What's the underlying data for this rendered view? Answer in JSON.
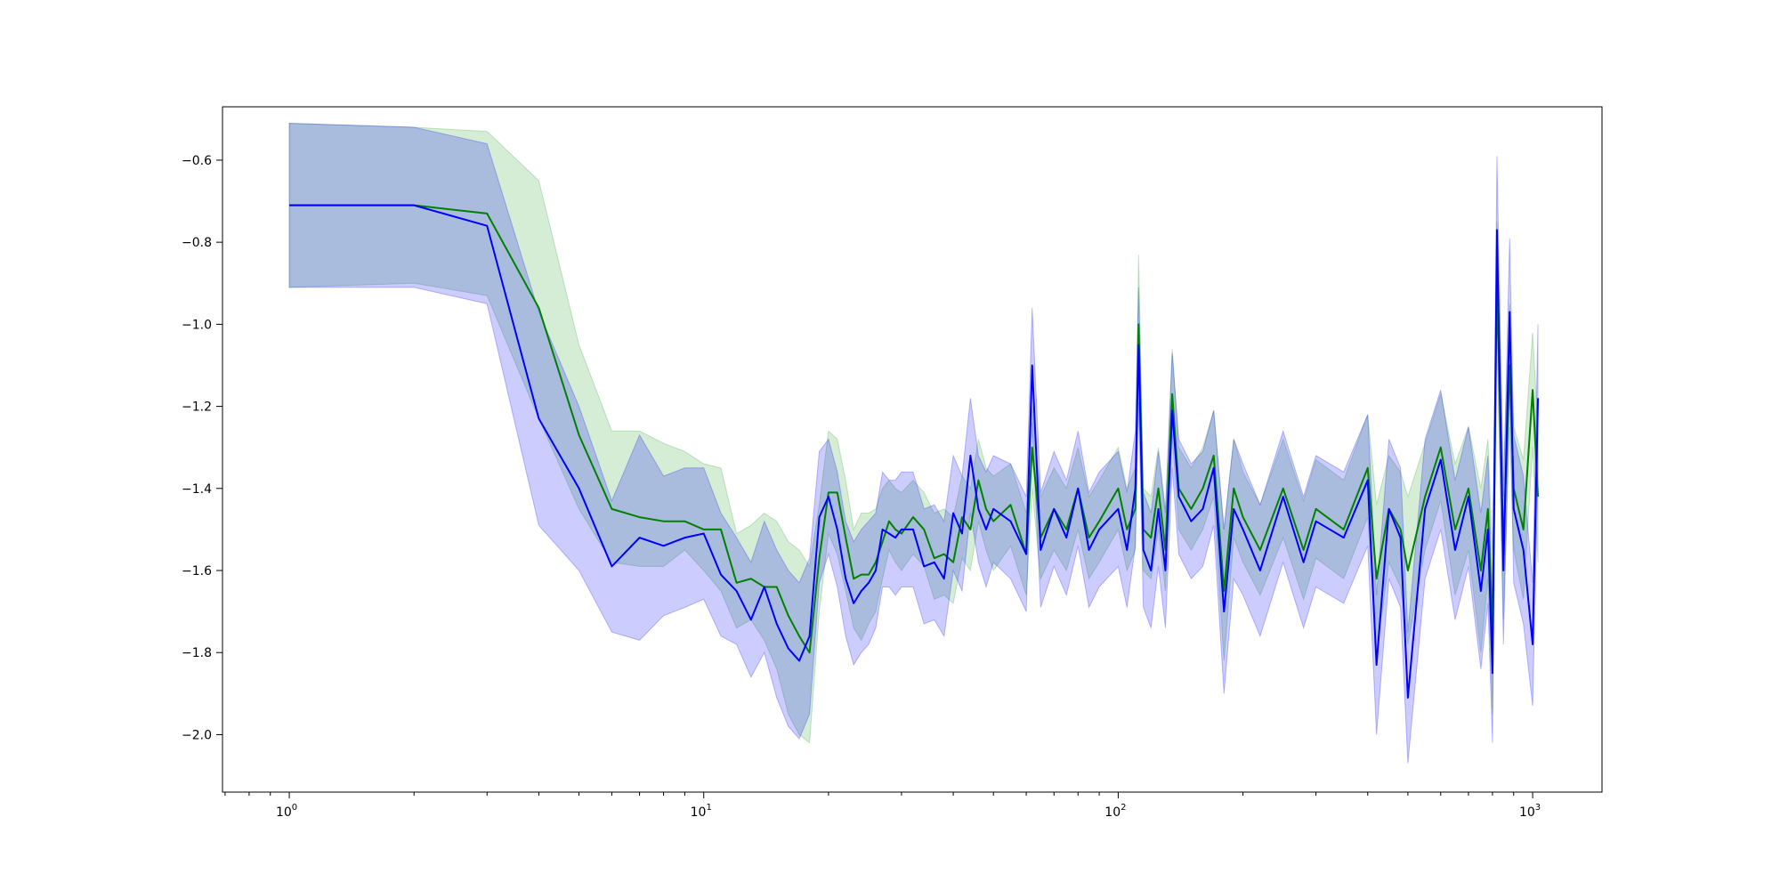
{
  "chart_data": {
    "type": "line",
    "title": "",
    "xlabel": "",
    "ylabel": "",
    "xscale": "log",
    "xlim": [
      0.69,
      1470
    ],
    "ylim": [
      -2.14,
      -0.47
    ],
    "grid": false,
    "legend": "none",
    "x_ticks": [
      {
        "value": 1,
        "base": "10",
        "exp": "0"
      },
      {
        "value": 10,
        "base": "10",
        "exp": "1"
      },
      {
        "value": 100,
        "base": "10",
        "exp": "2"
      },
      {
        "value": 1000,
        "base": "10",
        "exp": "3"
      }
    ],
    "y_ticks": [
      {
        "value": -0.6,
        "label": "−0.6"
      },
      {
        "value": -0.8,
        "label": "−0.8"
      },
      {
        "value": -1.0,
        "label": "−1.0"
      },
      {
        "value": -1.2,
        "label": "−1.2"
      },
      {
        "value": -1.4,
        "label": "−1.4"
      },
      {
        "value": -1.6,
        "label": "−1.6"
      },
      {
        "value": -1.8,
        "label": "−1.8"
      },
      {
        "value": -2.0,
        "label": "−2.0"
      }
    ],
    "series": [
      {
        "color": "#008000",
        "band_color": "#2ca02c",
        "x": [
          1,
          2,
          3,
          4,
          5,
          6,
          7,
          8,
          9,
          10,
          11,
          12,
          13,
          14,
          15,
          16,
          17,
          18,
          19,
          20,
          21,
          22,
          23,
          24,
          25,
          26,
          27,
          28,
          29,
          30,
          32,
          34,
          36,
          38,
          40,
          42,
          44,
          46,
          48,
          50,
          55,
          60,
          62,
          65,
          70,
          75,
          80,
          85,
          90,
          100,
          105,
          110,
          112,
          115,
          120,
          125,
          130,
          135,
          140,
          150,
          160,
          170,
          180,
          190,
          200,
          220,
          250,
          280,
          300,
          350,
          400,
          420,
          450,
          480,
          500,
          550,
          600,
          650,
          700,
          750,
          780,
          800,
          820,
          850,
          880,
          900,
          950,
          1000,
          1030
        ],
        "y": [
          -0.71,
          -0.71,
          -0.73,
          -0.96,
          -1.27,
          -1.45,
          -1.47,
          -1.48,
          -1.48,
          -1.5,
          -1.5,
          -1.63,
          -1.62,
          -1.64,
          -1.64,
          -1.71,
          -1.76,
          -1.8,
          -1.57,
          -1.41,
          -1.41,
          -1.52,
          -1.62,
          -1.61,
          -1.61,
          -1.58,
          -1.53,
          -1.48,
          -1.5,
          -1.51,
          -1.47,
          -1.5,
          -1.57,
          -1.56,
          -1.58,
          -1.47,
          -1.5,
          -1.38,
          -1.45,
          -1.48,
          -1.44,
          -1.56,
          -1.3,
          -1.52,
          -1.45,
          -1.5,
          -1.4,
          -1.52,
          -1.48,
          -1.4,
          -1.5,
          -1.45,
          -1.0,
          -1.5,
          -1.52,
          -1.4,
          -1.55,
          -1.17,
          -1.4,
          -1.45,
          -1.4,
          -1.32,
          -1.65,
          -1.4,
          -1.47,
          -1.55,
          -1.4,
          -1.55,
          -1.45,
          -1.5,
          -1.35,
          -1.62,
          -1.45,
          -1.5,
          -1.6,
          -1.42,
          -1.3,
          -1.5,
          -1.4,
          -1.6,
          -1.45,
          -1.75,
          -0.9,
          -1.55,
          -1.1,
          -1.4,
          -1.5,
          -1.16,
          -1.42
        ],
        "lower": [
          -0.91,
          -0.9,
          -0.93,
          -1.23,
          -1.45,
          -1.58,
          -1.59,
          -1.59,
          -1.55,
          -1.6,
          -1.65,
          -1.74,
          -1.72,
          -1.77,
          -1.84,
          -1.95,
          -2.0,
          -2.02,
          -1.7,
          -1.51,
          -1.56,
          -1.65,
          -1.74,
          -1.77,
          -1.73,
          -1.7,
          -1.62,
          -1.55,
          -1.58,
          -1.6,
          -1.56,
          -1.59,
          -1.67,
          -1.66,
          -1.68,
          -1.57,
          -1.6,
          -1.48,
          -1.55,
          -1.6,
          -1.54,
          -1.66,
          -1.4,
          -1.62,
          -1.55,
          -1.6,
          -1.5,
          -1.62,
          -1.58,
          -1.5,
          -1.6,
          -1.55,
          -1.1,
          -1.6,
          -1.62,
          -1.5,
          -1.65,
          -1.27,
          -1.5,
          -1.55,
          -1.5,
          -1.42,
          -1.82,
          -1.52,
          -1.58,
          -1.66,
          -1.52,
          -1.67,
          -1.57,
          -1.62,
          -1.47,
          -1.8,
          -1.58,
          -1.64,
          -1.78,
          -1.55,
          -1.43,
          -1.66,
          -1.55,
          -1.8,
          -1.62,
          -1.95,
          -1.05,
          -1.72,
          -1.25,
          -1.55,
          -1.67,
          -1.3,
          -1.58
        ],
        "upper": [
          -0.51,
          -0.52,
          -0.53,
          -0.65,
          -1.05,
          -1.26,
          -1.26,
          -1.29,
          -1.31,
          -1.34,
          -1.35,
          -1.51,
          -1.49,
          -1.46,
          -1.48,
          -1.53,
          -1.55,
          -1.59,
          -1.44,
          -1.26,
          -1.28,
          -1.38,
          -1.5,
          -1.46,
          -1.46,
          -1.45,
          -1.4,
          -1.38,
          -1.4,
          -1.41,
          -1.38,
          -1.41,
          -1.46,
          -1.45,
          -1.47,
          -1.37,
          -1.4,
          -1.28,
          -1.35,
          -1.37,
          -1.34,
          -1.46,
          -1.2,
          -1.42,
          -1.35,
          -1.4,
          -1.3,
          -1.42,
          -1.38,
          -1.3,
          -1.4,
          -1.35,
          -0.83,
          -1.4,
          -1.42,
          -1.3,
          -1.45,
          -1.06,
          -1.3,
          -1.35,
          -1.3,
          -1.21,
          -1.5,
          -1.28,
          -1.36,
          -1.44,
          -1.28,
          -1.43,
          -1.33,
          -1.38,
          -1.22,
          -1.44,
          -1.32,
          -1.36,
          -1.42,
          -1.29,
          -1.17,
          -1.34,
          -1.25,
          -1.4,
          -1.28,
          -1.55,
          -0.75,
          -1.38,
          -0.95,
          -1.25,
          -1.33,
          -1.02,
          -1.26
        ]
      },
      {
        "color": "#0000ff",
        "band_color": "#0000ff",
        "x": [
          1,
          2,
          3,
          4,
          5,
          6,
          7,
          8,
          9,
          10,
          11,
          12,
          13,
          14,
          15,
          16,
          17,
          18,
          19,
          20,
          21,
          22,
          23,
          24,
          25,
          26,
          27,
          28,
          29,
          30,
          32,
          34,
          36,
          38,
          40,
          42,
          44,
          46,
          48,
          50,
          55,
          60,
          62,
          65,
          70,
          75,
          80,
          85,
          90,
          100,
          105,
          110,
          112,
          115,
          120,
          125,
          130,
          135,
          140,
          150,
          160,
          170,
          180,
          190,
          200,
          220,
          250,
          280,
          300,
          350,
          400,
          420,
          450,
          480,
          500,
          550,
          600,
          650,
          700,
          750,
          780,
          800,
          820,
          850,
          880,
          900,
          950,
          1000,
          1030
        ],
        "y": [
          -0.71,
          -0.71,
          -0.76,
          -1.23,
          -1.4,
          -1.59,
          -1.52,
          -1.54,
          -1.52,
          -1.51,
          -1.61,
          -1.65,
          -1.72,
          -1.64,
          -1.73,
          -1.79,
          -1.82,
          -1.76,
          -1.47,
          -1.42,
          -1.5,
          -1.62,
          -1.68,
          -1.65,
          -1.63,
          -1.6,
          -1.5,
          -1.51,
          -1.52,
          -1.5,
          -1.5,
          -1.59,
          -1.58,
          -1.62,
          -1.46,
          -1.51,
          -1.32,
          -1.45,
          -1.5,
          -1.45,
          -1.48,
          -1.56,
          -1.1,
          -1.55,
          -1.45,
          -1.52,
          -1.4,
          -1.55,
          -1.5,
          -1.45,
          -1.55,
          -1.4,
          -1.05,
          -1.55,
          -1.6,
          -1.45,
          -1.6,
          -1.21,
          -1.42,
          -1.48,
          -1.45,
          -1.35,
          -1.7,
          -1.45,
          -1.5,
          -1.6,
          -1.42,
          -1.58,
          -1.48,
          -1.52,
          -1.38,
          -1.83,
          -1.45,
          -1.52,
          -1.91,
          -1.45,
          -1.33,
          -1.55,
          -1.42,
          -1.65,
          -1.5,
          -1.85,
          -0.77,
          -1.6,
          -0.97,
          -1.45,
          -1.55,
          -1.78,
          -1.18
        ],
        "lower": [
          -0.91,
          -0.91,
          -0.95,
          -1.49,
          -1.6,
          -1.75,
          -1.77,
          -1.71,
          -1.69,
          -1.67,
          -1.76,
          -1.78,
          -1.86,
          -1.8,
          -1.91,
          -1.98,
          -2.01,
          -1.95,
          -1.63,
          -1.56,
          -1.64,
          -1.76,
          -1.83,
          -1.8,
          -1.78,
          -1.74,
          -1.64,
          -1.64,
          -1.66,
          -1.64,
          -1.64,
          -1.73,
          -1.72,
          -1.76,
          -1.6,
          -1.65,
          -1.46,
          -1.58,
          -1.64,
          -1.58,
          -1.62,
          -1.7,
          -1.24,
          -1.69,
          -1.59,
          -1.66,
          -1.54,
          -1.69,
          -1.64,
          -1.59,
          -1.69,
          -1.54,
          -1.19,
          -1.69,
          -1.74,
          -1.59,
          -1.74,
          -1.35,
          -1.56,
          -1.62,
          -1.59,
          -1.49,
          -1.9,
          -1.62,
          -1.66,
          -1.76,
          -1.58,
          -1.74,
          -1.64,
          -1.68,
          -1.54,
          -2.0,
          -1.62,
          -1.69,
          -2.07,
          -1.62,
          -1.5,
          -1.72,
          -1.59,
          -1.84,
          -1.68,
          -2.02,
          -0.95,
          -1.78,
          -1.15,
          -1.63,
          -1.73,
          -1.93,
          -1.36
        ],
        "upper": [
          -0.51,
          -0.52,
          -0.56,
          -0.97,
          -1.2,
          -1.43,
          -1.27,
          -1.37,
          -1.35,
          -1.35,
          -1.46,
          -1.52,
          -1.58,
          -1.48,
          -1.55,
          -1.6,
          -1.63,
          -1.57,
          -1.31,
          -1.28,
          -1.36,
          -1.48,
          -1.53,
          -1.5,
          -1.48,
          -1.46,
          -1.36,
          -1.38,
          -1.38,
          -1.36,
          -1.36,
          -1.45,
          -1.44,
          -1.48,
          -1.32,
          -1.37,
          -1.18,
          -1.32,
          -1.36,
          -1.32,
          -1.34,
          -1.42,
          -0.96,
          -1.41,
          -1.31,
          -1.38,
          -1.26,
          -1.41,
          -1.36,
          -1.31,
          -1.41,
          -1.26,
          -0.91,
          -1.41,
          -1.46,
          -1.31,
          -1.46,
          -1.07,
          -1.28,
          -1.34,
          -1.31,
          -1.21,
          -1.5,
          -1.28,
          -1.34,
          -1.44,
          -1.26,
          -1.42,
          -1.32,
          -1.36,
          -1.22,
          -1.66,
          -1.28,
          -1.35,
          -1.75,
          -1.28,
          -1.16,
          -1.38,
          -1.25,
          -1.46,
          -1.32,
          -1.68,
          -0.59,
          -1.42,
          -0.79,
          -1.27,
          -1.37,
          -1.63,
          -1.0
        ]
      }
    ]
  }
}
